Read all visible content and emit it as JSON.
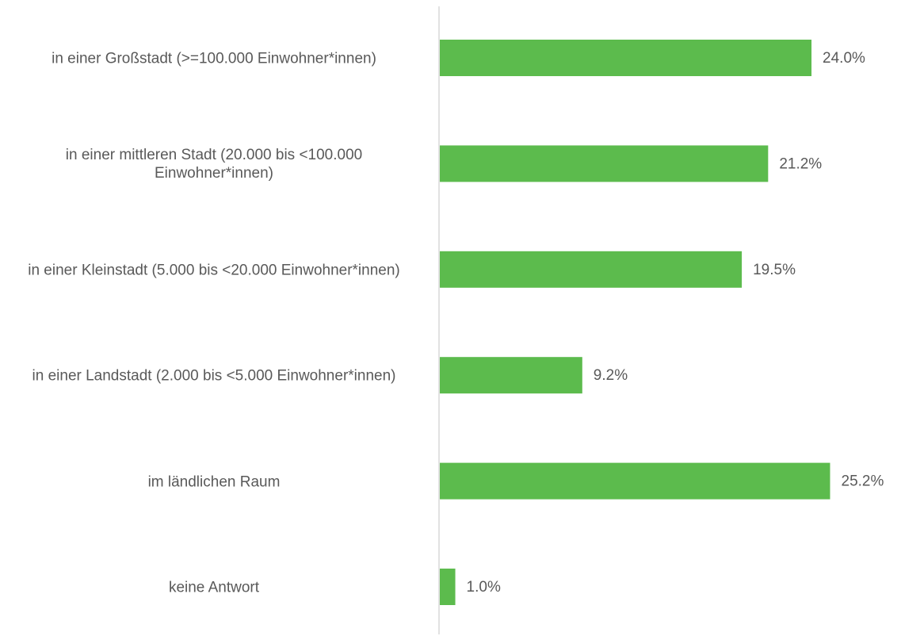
{
  "chart_data": {
    "type": "bar",
    "orientation": "horizontal",
    "categories": [
      "in einer Großstadt (>=100.000 Einwohner*innen)",
      "in einer mittleren Stadt (20.000 bis <100.000 Einwohner*innen)",
      "in einer Kleinstadt (5.000 bis <20.000 Einwohner*innen)",
      "in einer Landstadt (2.000 bis <5.000 Einwohner*innen)",
      "im ländlichen Raum",
      "keine Antwort"
    ],
    "values": [
      24.0,
      21.2,
      19.5,
      9.2,
      25.2,
      1.0
    ],
    "value_labels": [
      "24.0%",
      "21.2%",
      "19.5%",
      "9.2%",
      "25.2%",
      "1.0%"
    ],
    "color": "#5cbb4d"
  }
}
